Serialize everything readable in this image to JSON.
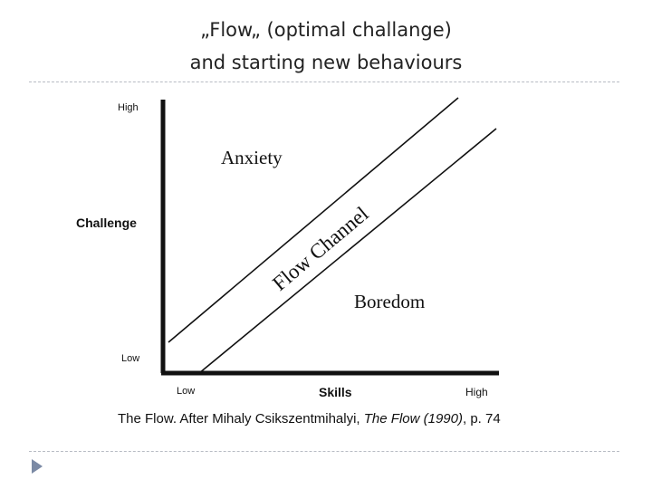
{
  "slide": {
    "title_line1": "„Flow„ (optimal challange)",
    "title_line2": "and starting new behaviours"
  },
  "diagram": {
    "y_axis": {
      "label": "Challenge",
      "high_label": "High",
      "low_label": "Low"
    },
    "x_axis": {
      "label": "Skills",
      "low_label": "Low",
      "high_label": "High"
    },
    "zones": {
      "anxiety": "Anxiety",
      "flow_channel": "Flow Channel",
      "boredom": "Boredom"
    },
    "line_color": "#111111"
  },
  "caption": {
    "prefix": "The Flow.  After Mihaly Csikszentmihalyi, ",
    "title_italic": "The Flow (1990)",
    "suffix": ", p. 74"
  },
  "footer": {
    "bullet_icon": "triangle-right-icon",
    "bullet_color": "#7b8aa5"
  }
}
